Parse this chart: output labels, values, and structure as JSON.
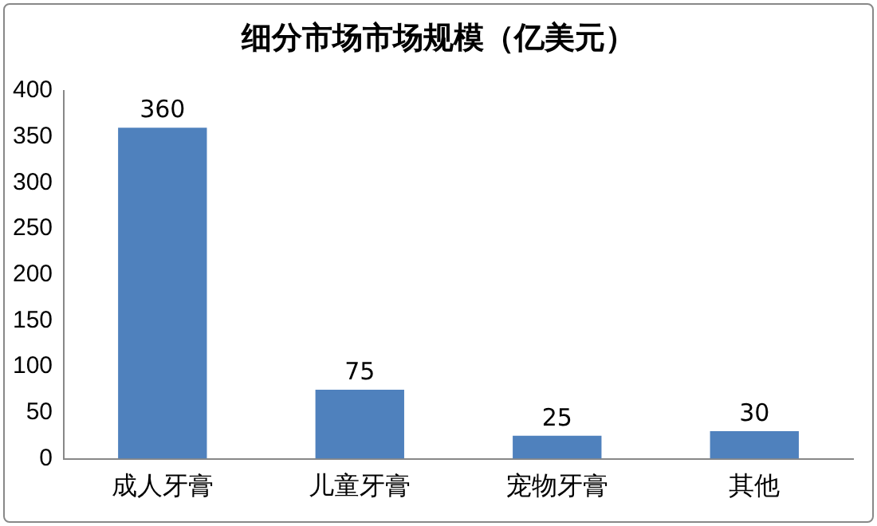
{
  "chart_data": {
    "type": "bar",
    "title": "细分市场市场规模（亿美元）",
    "categories": [
      "成人牙膏",
      "儿童牙膏",
      "宠物牙膏",
      "其他"
    ],
    "values": [
      360,
      75,
      25,
      30
    ],
    "color": "#4f81bd",
    "ylim": [
      0,
      400
    ],
    "yticks": [
      0,
      50,
      100,
      150,
      200,
      250,
      300,
      350,
      400
    ],
    "grid": false,
    "legend": false,
    "data_labels": true
  }
}
